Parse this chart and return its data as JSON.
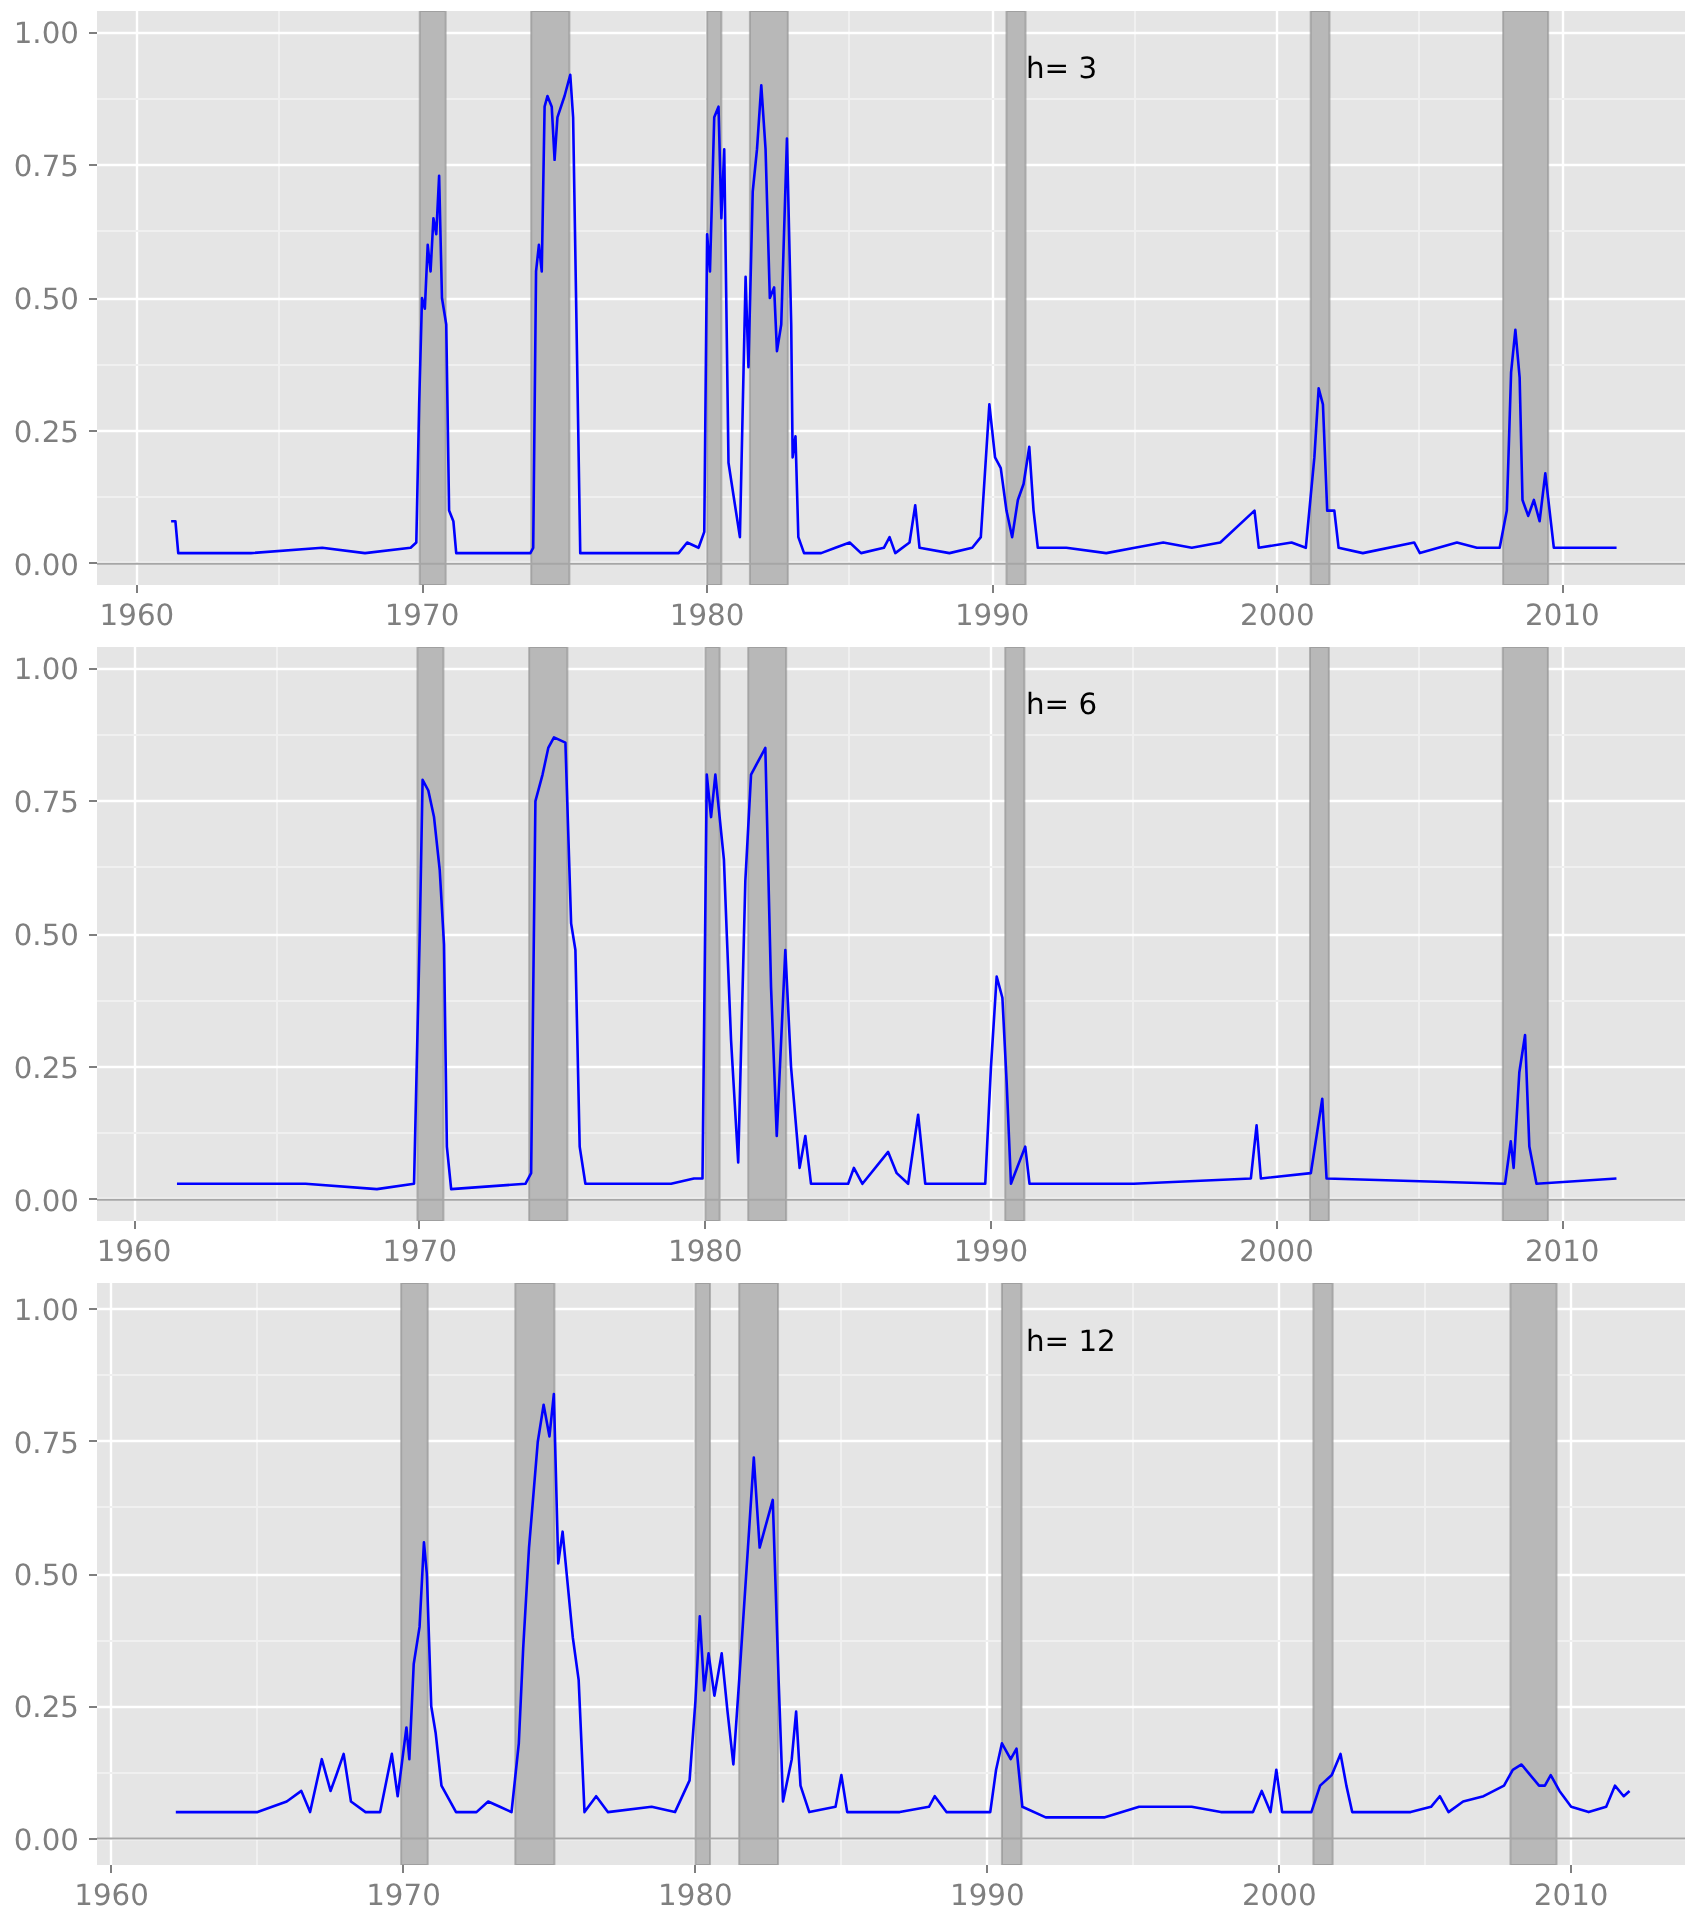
{
  "chart_data": [
    {
      "type": "line",
      "xlim": [
        1958.6,
        2014.3
      ],
      "ylim": [
        -0.04,
        1.04
      ],
      "xticks": [
        1960,
        1970,
        1980,
        1990,
        2000,
        2010
      ],
      "yticks": [
        {
          "value": 0,
          "label": "0.00"
        },
        {
          "value": 0.25,
          "label": "0.25"
        },
        {
          "value": 0.5,
          "label": "0.50"
        },
        {
          "value": 0.75,
          "label": "0.75"
        },
        {
          "value": 1,
          "label": "1.00"
        }
      ],
      "grid": true,
      "line_style": "solid",
      "annotations": [
        "h= 3"
      ],
      "ref_lines": [
        {
          "axis": "y",
          "value": 0,
          "color": "#a6a6a6"
        }
      ],
      "bands": [
        {
          "axis": "x",
          "from": 1969.92,
          "to": 1970.83,
          "color": "#b8b8b8"
        },
        {
          "axis": "x",
          "from": 1973.83,
          "to": 1975.17,
          "color": "#b8b8b8"
        },
        {
          "axis": "x",
          "from": 1980.0,
          "to": 1980.5,
          "color": "#b8b8b8"
        },
        {
          "axis": "x",
          "from": 1981.5,
          "to": 1982.83,
          "color": "#b8b8b8"
        },
        {
          "axis": "x",
          "from": 1990.5,
          "to": 1991.17,
          "color": "#b8b8b8"
        },
        {
          "axis": "x",
          "from": 2001.17,
          "to": 2001.83,
          "color": "#b8b8b8"
        },
        {
          "axis": "x",
          "from": 2007.92,
          "to": 2009.5,
          "color": "#b8b8b8"
        }
      ],
      "series": [
        {
          "color": "#0000ff",
          "x": [
            1961.2,
            1961.35,
            1961.45,
            1964,
            1966.5,
            1968,
            1969.6,
            1969.8,
            1969.9,
            1970.0,
            1970.1,
            1970.2,
            1970.3,
            1970.4,
            1970.5,
            1970.6,
            1970.7,
            1970.85,
            1970.95,
            1971.1,
            1971.2,
            1973.8,
            1973.9,
            1974.0,
            1974.1,
            1974.2,
            1974.3,
            1974.4,
            1974.55,
            1974.65,
            1974.75,
            1975.0,
            1975.2,
            1975.3,
            1975.55,
            1979.0,
            1979.3,
            1979.7,
            1979.9,
            1980.0,
            1980.1,
            1980.25,
            1980.4,
            1980.5,
            1980.6,
            1980.75,
            1981.15,
            1981.35,
            1981.45,
            1981.6,
            1981.75,
            1981.9,
            1982.05,
            1982.2,
            1982.35,
            1982.45,
            1982.6,
            1982.8,
            1982.95,
            1983.0,
            1983.1,
            1983.2,
            1983.4,
            1984,
            1984.5,
            1985,
            1985.4,
            1986.2,
            1986.4,
            1986.6,
            1987.1,
            1987.3,
            1987.45,
            1988.5,
            1989.3,
            1989.6,
            1989.9,
            1990.1,
            1990.3,
            1990.5,
            1990.7,
            1990.9,
            1991.1,
            1991.3,
            1991.45,
            1991.6,
            1992.6,
            1994,
            1995,
            1996,
            1997,
            1998,
            1999.2,
            1999.35,
            2000.5,
            2001.0,
            2001.3,
            2001.45,
            2001.6,
            2001.75,
            2002.0,
            2002.15,
            2003,
            2004.8,
            2005,
            2006.3,
            2007,
            2007.8,
            2008.05,
            2008.2,
            2008.35,
            2008.5,
            2008.6,
            2008.8,
            2009.0,
            2009.2,
            2009.4,
            2009.55,
            2009.7,
            2011.9
          ],
          "values": [
            0.08,
            0.08,
            0.02,
            0.02,
            0.03,
            0.02,
            0.03,
            0.04,
            0.3,
            0.5,
            0.48,
            0.6,
            0.55,
            0.65,
            0.62,
            0.73,
            0.5,
            0.45,
            0.1,
            0.08,
            0.02,
            0.02,
            0.03,
            0.55,
            0.6,
            0.55,
            0.86,
            0.88,
            0.86,
            0.76,
            0.84,
            0.88,
            0.92,
            0.84,
            0.02,
            0.02,
            0.04,
            0.03,
            0.06,
            0.62,
            0.55,
            0.84,
            0.86,
            0.65,
            0.78,
            0.19,
            0.05,
            0.54,
            0.37,
            0.7,
            0.78,
            0.9,
            0.78,
            0.5,
            0.52,
            0.4,
            0.45,
            0.8,
            0.45,
            0.2,
            0.24,
            0.05,
            0.02,
            0.02,
            0.03,
            0.04,
            0.02,
            0.03,
            0.05,
            0.02,
            0.04,
            0.11,
            0.03,
            0.02,
            0.03,
            0.05,
            0.3,
            0.2,
            0.18,
            0.1,
            0.05,
            0.12,
            0.15,
            0.22,
            0.1,
            0.03,
            0.03,
            0.02,
            0.03,
            0.04,
            0.03,
            0.04,
            0.1,
            0.03,
            0.04,
            0.03,
            0.2,
            0.33,
            0.3,
            0.1,
            0.1,
            0.03,
            0.02,
            0.04,
            0.02,
            0.04,
            0.03,
            0.03,
            0.1,
            0.36,
            0.44,
            0.35,
            0.12,
            0.09,
            0.12,
            0.08,
            0.17,
            0.1,
            0.03,
            0.03
          ]
        }
      ]
    },
    {
      "type": "line",
      "xlim": [
        1958.7,
        2014.3
      ],
      "ylim": [
        -0.04,
        1.04
      ],
      "xticks": [
        1960,
        1970,
        1980,
        1990,
        2000,
        2010
      ],
      "yticks": [
        {
          "value": 0,
          "label": "0.00"
        },
        {
          "value": 0.25,
          "label": "0.25"
        },
        {
          "value": 0.5,
          "label": "0.50"
        },
        {
          "value": 0.75,
          "label": "0.75"
        },
        {
          "value": 1,
          "label": "1.00"
        }
      ],
      "grid": true,
      "line_style": "solid",
      "annotations": [
        "h= 6"
      ],
      "ref_lines": [
        {
          "axis": "y",
          "value": 0,
          "color": "#a6a6a6"
        }
      ],
      "bands": [
        {
          "axis": "x",
          "from": 1969.92,
          "to": 1970.83,
          "color": "#b8b8b8"
        },
        {
          "axis": "x",
          "from": 1973.83,
          "to": 1975.17,
          "color": "#b8b8b8"
        },
        {
          "axis": "x",
          "from": 1980.0,
          "to": 1980.5,
          "color": "#b8b8b8"
        },
        {
          "axis": "x",
          "from": 1981.5,
          "to": 1982.83,
          "color": "#b8b8b8"
        },
        {
          "axis": "x",
          "from": 1990.5,
          "to": 1991.17,
          "color": "#b8b8b8"
        },
        {
          "axis": "x",
          "from": 2001.17,
          "to": 2001.83,
          "color": "#b8b8b8"
        },
        {
          "axis": "x",
          "from": 2007.92,
          "to": 2009.5,
          "color": "#b8b8b8"
        }
      ],
      "series": [
        {
          "color": "#0000ff",
          "x": [
            1961.5,
            1966,
            1968.5,
            1969.8,
            1970.0,
            1970.1,
            1970.3,
            1970.5,
            1970.7,
            1970.85,
            1970.95,
            1971.1,
            1973.7,
            1973.9,
            1974.05,
            1974.3,
            1974.5,
            1974.7,
            1975.1,
            1975.3,
            1975.45,
            1975.6,
            1975.8,
            1978.8,
            1979.6,
            1979.9,
            1980.05,
            1980.2,
            1980.35,
            1980.5,
            1980.65,
            1980.75,
            1980.9,
            1981.15,
            1981.4,
            1981.6,
            1981.8,
            1982.1,
            1982.3,
            1982.5,
            1982.8,
            1983.0,
            1983.3,
            1983.5,
            1983.7,
            1985,
            1985.2,
            1985.5,
            1986.4,
            1986.7,
            1987.1,
            1987.45,
            1987.7,
            1989.8,
            1990.0,
            1990.2,
            1990.4,
            1990.55,
            1990.7,
            1991.2,
            1991.35,
            1995,
            1999.1,
            1999.3,
            1999.45,
            2001.2,
            2001.6,
            2001.75,
            2008.0,
            2008.2,
            2008.3,
            2008.5,
            2008.7,
            2008.85,
            2009.1,
            2011.9
          ],
          "values": [
            0.03,
            0.03,
            0.02,
            0.03,
            0.5,
            0.79,
            0.77,
            0.72,
            0.62,
            0.48,
            0.1,
            0.02,
            0.03,
            0.05,
            0.75,
            0.8,
            0.85,
            0.87,
            0.86,
            0.52,
            0.47,
            0.1,
            0.03,
            0.03,
            0.04,
            0.04,
            0.8,
            0.72,
            0.8,
            0.72,
            0.64,
            0.5,
            0.3,
            0.07,
            0.6,
            0.8,
            0.82,
            0.85,
            0.4,
            0.12,
            0.47,
            0.25,
            0.06,
            0.12,
            0.03,
            0.03,
            0.06,
            0.03,
            0.09,
            0.05,
            0.03,
            0.16,
            0.03,
            0.03,
            0.25,
            0.42,
            0.38,
            0.22,
            0.03,
            0.1,
            0.03,
            0.03,
            0.04,
            0.14,
            0.04,
            0.05,
            0.19,
            0.04,
            0.03,
            0.11,
            0.06,
            0.24,
            0.31,
            0.1,
            0.03,
            0.04
          ]
        }
      ]
    },
    {
      "type": "line",
      "xlim": [
        1959.5,
        2013.9
      ],
      "ylim": [
        -0.05,
        1.05
      ],
      "xticks": [
        1960,
        1970,
        1980,
        1990,
        2000,
        2010
      ],
      "yticks": [
        {
          "value": 0,
          "label": "0.00"
        },
        {
          "value": 0.25,
          "label": "0.25"
        },
        {
          "value": 0.5,
          "label": "0.50"
        },
        {
          "value": 0.75,
          "label": "0.75"
        },
        {
          "value": 1,
          "label": "1.00"
        }
      ],
      "grid": true,
      "line_style": "solid",
      "annotations": [
        "h= 12"
      ],
      "ref_lines": [
        {
          "axis": "y",
          "value": 0,
          "color": "#a6a6a6"
        }
      ],
      "bands": [
        {
          "axis": "x",
          "from": 1969.92,
          "to": 1970.83,
          "color": "#b8b8b8"
        },
        {
          "axis": "x",
          "from": 1973.83,
          "to": 1975.17,
          "color": "#b8b8b8"
        },
        {
          "axis": "x",
          "from": 1980.0,
          "to": 1980.5,
          "color": "#b8b8b8"
        },
        {
          "axis": "x",
          "from": 1981.5,
          "to": 1982.83,
          "color": "#b8b8b8"
        },
        {
          "axis": "x",
          "from": 1990.5,
          "to": 1991.17,
          "color": "#b8b8b8"
        },
        {
          "axis": "x",
          "from": 2001.17,
          "to": 2001.83,
          "color": "#b8b8b8"
        },
        {
          "axis": "x",
          "from": 2007.92,
          "to": 2009.5,
          "color": "#b8b8b8"
        }
      ],
      "series": [
        {
          "color": "#0000ff",
          "x": [
            1962.2,
            1963,
            1965,
            1966,
            1966.5,
            1966.8,
            1967.2,
            1967.5,
            1967.7,
            1967.95,
            1968.2,
            1968.7,
            1969.2,
            1969.6,
            1969.8,
            1970.1,
            1970.2,
            1970.35,
            1970.55,
            1970.7,
            1970.8,
            1970.95,
            1971.1,
            1971.3,
            1971.8,
            1972.5,
            1972.9,
            1973.3,
            1973.7,
            1973.95,
            1974.1,
            1974.3,
            1974.6,
            1974.8,
            1975.0,
            1975.15,
            1975.3,
            1975.45,
            1975.8,
            1976.0,
            1976.2,
            1976.6,
            1977,
            1978.5,
            1979.3,
            1979.8,
            1980.0,
            1980.15,
            1980.3,
            1980.45,
            1980.65,
            1980.9,
            1981.1,
            1981.3,
            1981.5,
            1981.8,
            1982.0,
            1982.2,
            1982.45,
            1982.65,
            1982.85,
            1983.0,
            1983.3,
            1983.45,
            1983.6,
            1983.9,
            1984.8,
            1985.0,
            1985.2,
            1987,
            1988,
            1988.2,
            1988.6,
            1990.1,
            1990.3,
            1990.5,
            1990.8,
            1991.0,
            1991.2,
            1992,
            1994,
            1995.2,
            1996,
            1997,
            1998,
            1999.1,
            1999.4,
            1999.7,
            1999.9,
            2000.1,
            2001.1,
            2001.4,
            2001.8,
            2002.1,
            2002.3,
            2002.5,
            2004.5,
            2005.2,
            2005.5,
            2005.8,
            2006.3,
            2007.0,
            2007.7,
            2008.0,
            2008.3,
            2008.6,
            2008.9,
            2009.1,
            2009.3,
            2009.6,
            2010.0,
            2010.6,
            2011.2,
            2011.5,
            2011.8,
            2012.0
          ],
          "values": [
            0.05,
            0.05,
            0.05,
            0.07,
            0.09,
            0.05,
            0.15,
            0.09,
            0.12,
            0.16,
            0.07,
            0.05,
            0.05,
            0.16,
            0.08,
            0.21,
            0.15,
            0.33,
            0.4,
            0.56,
            0.5,
            0.25,
            0.2,
            0.1,
            0.05,
            0.05,
            0.07,
            0.06,
            0.05,
            0.18,
            0.36,
            0.55,
            0.75,
            0.82,
            0.76,
            0.84,
            0.52,
            0.58,
            0.38,
            0.3,
            0.05,
            0.08,
            0.05,
            0.06,
            0.05,
            0.11,
            0.26,
            0.42,
            0.28,
            0.35,
            0.27,
            0.35,
            0.24,
            0.14,
            0.3,
            0.55,
            0.72,
            0.55,
            0.6,
            0.64,
            0.3,
            0.07,
            0.15,
            0.24,
            0.1,
            0.05,
            0.06,
            0.12,
            0.05,
            0.05,
            0.06,
            0.08,
            0.05,
            0.05,
            0.13,
            0.18,
            0.15,
            0.17,
            0.06,
            0.04,
            0.04,
            0.06,
            0.06,
            0.06,
            0.05,
            0.05,
            0.09,
            0.05,
            0.13,
            0.05,
            0.05,
            0.1,
            0.12,
            0.16,
            0.1,
            0.05,
            0.05,
            0.06,
            0.08,
            0.05,
            0.07,
            0.08,
            0.1,
            0.13,
            0.14,
            0.12,
            0.1,
            0.1,
            0.12,
            0.09,
            0.06,
            0.05,
            0.06,
            0.1,
            0.08,
            0.09
          ]
        }
      ]
    }
  ]
}
